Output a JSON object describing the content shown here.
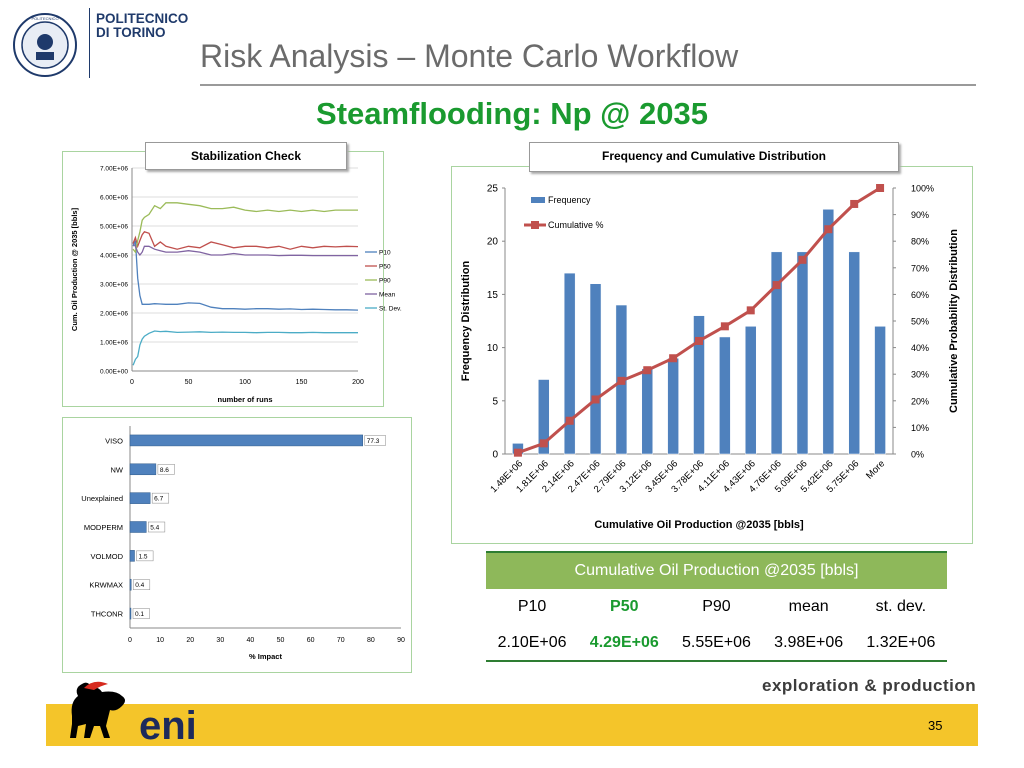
{
  "header": {
    "university_line1": "POLITECNICO",
    "university_line2": "DI TORINO",
    "title": "Risk Analysis – Monte Carlo Workflow",
    "subtitle": "Steamflooding: Np @ 2035"
  },
  "colors": {
    "title_gray": "#6b6b6b",
    "subtitle_green": "#1a9a2f",
    "panel_border": "#a9d4a0",
    "bar_blue": "#4f81bd",
    "cum_red": "#c0504d",
    "table_header_green": "#8eb85a",
    "footer_yellow": "#f4c52a",
    "p10": "#4f81bd",
    "p50": "#c0504d",
    "p90": "#9bbb59",
    "mean": "#8064a2",
    "stdev": "#4bacc6"
  },
  "chart_data": [
    {
      "type": "line",
      "box_title": "Stabilization Check",
      "xlabel": "number of runs",
      "ylabel": "Cum. Oil Production @ 2035 [bbls]",
      "xlim": [
        0,
        200
      ],
      "ylim": [
        0,
        7000000
      ],
      "x_ticks": [
        "0",
        "50",
        "100",
        "150",
        "200"
      ],
      "y_ticks": [
        "0.00E+00",
        "1.00E+06",
        "2.00E+06",
        "3.00E+06",
        "4.00E+06",
        "5.00E+06",
        "6.00E+06",
        "7.00E+06"
      ],
      "grid": true,
      "legend_position": "right",
      "x": [
        1,
        3,
        5,
        7,
        9,
        11,
        15,
        20,
        25,
        30,
        40,
        50,
        60,
        70,
        80,
        90,
        100,
        110,
        120,
        130,
        140,
        150,
        160,
        170,
        180,
        190,
        200
      ],
      "series": [
        {
          "name": "P10",
          "color_key": "p10",
          "values": [
            4300000,
            4500000,
            3200000,
            2600000,
            2300000,
            2300000,
            2300000,
            2320000,
            2310000,
            2300000,
            2300000,
            2350000,
            2330000,
            2200000,
            2150000,
            2150000,
            2130000,
            2150000,
            2150000,
            2130000,
            2140000,
            2120000,
            2130000,
            2120000,
            2110000,
            2110000,
            2100000
          ]
        },
        {
          "name": "P50",
          "color_key": "p50",
          "values": [
            4400000,
            4600000,
            4300000,
            4500000,
            4700000,
            4800000,
            4750000,
            4300000,
            4450000,
            4300000,
            4200000,
            4300000,
            4250000,
            4450000,
            4350000,
            4250000,
            4300000,
            4300000,
            4250000,
            4300000,
            4200000,
            4300000,
            4250000,
            4300000,
            4280000,
            4300000,
            4290000
          ]
        },
        {
          "name": "P90",
          "color_key": "p90",
          "values": [
            4200000,
            4100000,
            4500000,
            4800000,
            5200000,
            5300000,
            5400000,
            5700000,
            5600000,
            5800000,
            5800000,
            5750000,
            5700000,
            5600000,
            5600000,
            5650000,
            5550000,
            5500000,
            5550000,
            5500000,
            5550000,
            5500000,
            5550000,
            5500000,
            5550000,
            5550000,
            5550000
          ]
        },
        {
          "name": "Mean",
          "color_key": "mean",
          "values": [
            4400000,
            4300000,
            4100000,
            4000000,
            4100000,
            4300000,
            4300000,
            4200000,
            4150000,
            4100000,
            4100000,
            4150000,
            4100000,
            4000000,
            4000000,
            4050000,
            4000000,
            4000000,
            4000000,
            3980000,
            3990000,
            3990000,
            3980000,
            3980000,
            3980000,
            3980000,
            3980000
          ]
        },
        {
          "name": "St. Dev.",
          "color_key": "stdev",
          "values": [
            200000,
            400000,
            500000,
            900000,
            1100000,
            1200000,
            1300000,
            1380000,
            1360000,
            1370000,
            1330000,
            1340000,
            1350000,
            1330000,
            1340000,
            1330000,
            1330000,
            1320000,
            1330000,
            1330000,
            1320000,
            1320000,
            1330000,
            1320000,
            1320000,
            1320000,
            1320000
          ]
        }
      ]
    },
    {
      "type": "bar",
      "orientation": "horizontal",
      "xlabel": "% Impact",
      "xlim": [
        0,
        90
      ],
      "x_ticks": [
        "0",
        "10",
        "20",
        "30",
        "40",
        "50",
        "60",
        "70",
        "80",
        "90"
      ],
      "categories": [
        "VISO",
        "NW",
        "Unexplained",
        "MODPERM",
        "VOLMOD",
        "KRWMAX",
        "THCONR"
      ],
      "values": [
        77.3,
        8.6,
        6.7,
        5.4,
        1.5,
        0.4,
        0.1
      ],
      "value_labels": [
        "77.3",
        "8.6",
        "6.7",
        "5.4",
        "1.5",
        "0.4",
        "0.1"
      ]
    },
    {
      "type": "bar",
      "box_title": "Frequency and Cumulative Distribution",
      "xlabel": "Cumulative Oil Production @2035 [bbls]",
      "ylabel": "Frequency Distribution",
      "y2label": "Cumulative Probability Distribution",
      "ylim": [
        0,
        25
      ],
      "y2lim": [
        0,
        1
      ],
      "y_ticks": [
        "0",
        "5",
        "10",
        "15",
        "20",
        "25"
      ],
      "y2_ticks": [
        "0%",
        "10%",
        "20%",
        "30%",
        "40%",
        "50%",
        "60%",
        "70%",
        "80%",
        "90%",
        "100%"
      ],
      "legend_position": "top-left",
      "categories": [
        "1.48E+06",
        "1.81E+06",
        "2.14E+06",
        "2.47E+06",
        "2.79E+06",
        "3.12E+06",
        "3.45E+06",
        "3.78E+06",
        "4.11E+06",
        "4.43E+06",
        "4.76E+06",
        "5.09E+06",
        "5.42E+06",
        "5.75E+06",
        "More"
      ],
      "series": [
        {
          "name": "Frequency",
          "kind": "bar",
          "color_key": "bar_blue",
          "values": [
            1,
            7,
            17,
            16,
            14,
            8,
            9,
            13,
            11,
            12,
            19,
            19,
            23,
            19,
            12
          ]
        },
        {
          "name": "Cumulative %",
          "kind": "line",
          "axis": "right",
          "color_key": "cum_red",
          "values": [
            0.005,
            0.04,
            0.125,
            0.205,
            0.275,
            0.315,
            0.36,
            0.425,
            0.48,
            0.54,
            0.635,
            0.73,
            0.845,
            0.94,
            1.0
          ]
        }
      ]
    }
  ],
  "table": {
    "caption": "Cumulative Oil Production @2035 [bbls]",
    "headers": [
      "P10",
      "P50",
      "P90",
      "mean",
      "st. dev."
    ],
    "values": [
      "2.10E+06",
      "4.29E+06",
      "5.55E+06",
      "3.98E+06",
      "1.32E+06"
    ]
  },
  "footer": {
    "brand": "eni",
    "division": "exploration & production",
    "page_number": "35"
  }
}
